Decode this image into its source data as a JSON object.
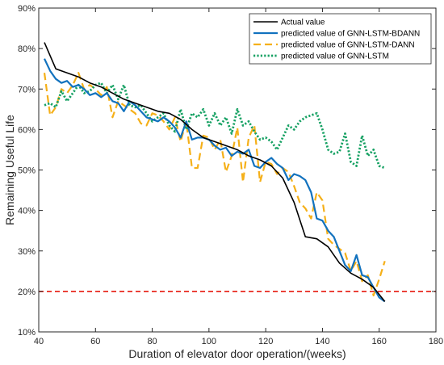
{
  "chart_data": {
    "type": "line",
    "xlabel": "Duration of elevator door operation/(weeks)",
    "ylabel": "Remaining Useful Life",
    "xlim": [
      40,
      180
    ],
    "ylim": [
      10,
      90
    ],
    "xticks": [
      40,
      60,
      80,
      100,
      120,
      140,
      160,
      180
    ],
    "yticks": [
      10,
      20,
      30,
      40,
      50,
      60,
      70,
      80,
      90
    ],
    "ytick_labels": [
      "10%",
      "20%",
      "30%",
      "40%",
      "50%",
      "60%",
      "70%",
      "80%",
      "90%"
    ],
    "grid": false,
    "legend_position": "top-right",
    "threshold": {
      "y": 20,
      "color": "#e8281e",
      "style": "dashed"
    },
    "series": [
      {
        "name": "Actual value",
        "color": "#000000",
        "style": "solid",
        "x": [
          42,
          46,
          50,
          54,
          58,
          62,
          66,
          70,
          74,
          78,
          82,
          86,
          90,
          94,
          98,
          102,
          106,
          110,
          114,
          118,
          122,
          126,
          130,
          134,
          138,
          142,
          146,
          150,
          154,
          158,
          162
        ],
        "y": [
          81.5,
          75,
          74,
          73,
          71.5,
          70.5,
          69,
          67.5,
          66.5,
          65.5,
          64.5,
          64,
          62.5,
          60,
          58,
          57,
          56,
          55,
          53.5,
          52.5,
          51,
          48,
          42,
          33.5,
          33,
          31,
          27,
          24.5,
          23,
          21,
          17.5
        ]
      },
      {
        "name": "predicted value of GNN-LSTM-BDANN",
        "color": "#1272be",
        "style": "solid",
        "x": [
          42,
          44,
          46,
          48,
          50,
          52,
          54,
          56,
          58,
          60,
          62,
          64,
          66,
          68,
          70,
          72,
          74,
          76,
          78,
          80,
          82,
          84,
          86,
          88,
          90,
          92,
          94,
          96,
          98,
          100,
          102,
          104,
          106,
          108,
          110,
          112,
          114,
          116,
          118,
          120,
          122,
          124,
          126,
          128,
          130,
          132,
          134,
          136,
          138,
          140,
          142,
          144,
          146,
          148,
          150,
          152,
          154,
          156,
          158,
          160,
          162
        ],
        "y": [
          77.5,
          74.5,
          72.5,
          71.5,
          72,
          70.5,
          71,
          70,
          68.5,
          69,
          68,
          69,
          67,
          66.5,
          64.5,
          67,
          66,
          64.5,
          63,
          62.5,
          62,
          63,
          62,
          60.5,
          58,
          62,
          57.5,
          58,
          58,
          57.5,
          56,
          55,
          55.5,
          53.5,
          54.5,
          54,
          55,
          51,
          50.5,
          52,
          53,
          51.5,
          50.5,
          47.5,
          49,
          48.5,
          47.5,
          44.5,
          38,
          37.5,
          35,
          33.5,
          30,
          26.5,
          25,
          29,
          24,
          23.5,
          21,
          18.5,
          17.5
        ]
      },
      {
        "name": "predicted value of GNN-LSTM-DANN",
        "color": "#f5b019",
        "style": "dashed",
        "x": [
          42,
          44,
          46,
          48,
          50,
          52,
          54,
          56,
          58,
          60,
          62,
          64,
          66,
          68,
          70,
          72,
          74,
          76,
          78,
          80,
          82,
          84,
          86,
          88,
          90,
          92,
          94,
          96,
          98,
          100,
          102,
          104,
          106,
          108,
          110,
          112,
          114,
          116,
          118,
          120,
          122,
          124,
          126,
          128,
          130,
          132,
          134,
          136,
          138,
          140,
          142,
          144,
          146,
          148,
          150,
          152,
          154,
          156,
          158,
          160,
          162
        ],
        "y": [
          74,
          63.5,
          65.5,
          70,
          69,
          71,
          74,
          70,
          71,
          70,
          68.5,
          70.5,
          63,
          67,
          66,
          65,
          64,
          61.5,
          61,
          64,
          63.5,
          62,
          60,
          63,
          57,
          62,
          50.5,
          50.5,
          58.5,
          58,
          55,
          57.5,
          49.5,
          53.5,
          60.5,
          47,
          58,
          61,
          47,
          52,
          51.5,
          49,
          50.5,
          49.5,
          46,
          42,
          40.5,
          38,
          44.5,
          42.5,
          33,
          31.5,
          30.5,
          29.5,
          25,
          27.5,
          22.5,
          24,
          19,
          23,
          27.5
        ]
      },
      {
        "name": "predicted value of GNN-LSTM",
        "color": "#16a163",
        "style": "dotted",
        "x": [
          42,
          44,
          46,
          48,
          50,
          52,
          54,
          56,
          58,
          60,
          62,
          64,
          66,
          68,
          70,
          72,
          74,
          76,
          78,
          80,
          82,
          84,
          86,
          88,
          90,
          92,
          94,
          96,
          98,
          100,
          102,
          104,
          106,
          108,
          110,
          112,
          114,
          116,
          118,
          120,
          122,
          124,
          126,
          128,
          130,
          132,
          134,
          136,
          138,
          140,
          142,
          144,
          146,
          148,
          150,
          152,
          154,
          156,
          158,
          160,
          162
        ],
        "y": [
          66,
          66.5,
          65.5,
          69.5,
          67,
          69,
          71,
          69,
          69.5,
          71,
          71.5,
          69,
          71,
          67.5,
          71,
          66,
          65.5,
          66,
          64,
          62,
          63,
          64,
          61,
          59.5,
          65,
          60,
          64,
          63,
          65,
          61,
          64,
          61,
          63,
          59,
          65,
          61,
          62,
          59.5,
          57.5,
          58,
          57,
          55,
          58,
          61,
          60,
          62,
          63,
          63.5,
          64,
          60,
          55,
          54,
          54.5,
          59,
          52,
          51,
          58.5,
          53.5,
          55,
          51,
          50.5
        ]
      }
    ]
  }
}
